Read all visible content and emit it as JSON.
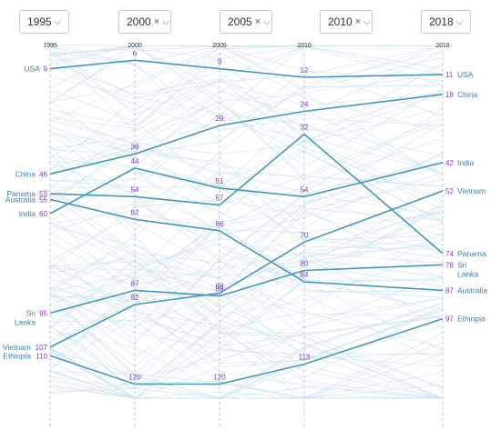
{
  "selectors": [
    {
      "label": "1995",
      "clear": false
    },
    {
      "label": "2000",
      "clear": true
    },
    {
      "label": "2005",
      "clear": true
    },
    {
      "label": "2010",
      "clear": true
    },
    {
      "label": "2018",
      "clear": false
    }
  ],
  "clear_glyph": "×",
  "chevron_glyph": "⌵",
  "colors": {
    "highlight": "#4a96b5",
    "background_lines": "#cfe3ee",
    "rank_text": "#7a3fc8",
    "country_text": "#3a7fa8"
  },
  "chart_data": {
    "type": "line",
    "title": "",
    "xlabel": "",
    "ylabel": "",
    "x": [
      "1995",
      "2000",
      "2005",
      "2010",
      "2018"
    ],
    "y_axis": "rank (1 at top)",
    "ylim": [
      0,
      125
    ],
    "series": [
      {
        "name": "USA",
        "label_lines": [
          "USA"
        ],
        "values": [
          9,
          6,
          9,
          12,
          11
        ]
      },
      {
        "name": "China",
        "label_lines": [
          "China"
        ],
        "values": [
          46,
          39,
          29,
          24,
          18
        ]
      },
      {
        "name": "Panama",
        "label_lines": [
          "Panama"
        ],
        "values": [
          53,
          54,
          57,
          32,
          74
        ]
      },
      {
        "name": "Australia",
        "label_lines": [
          "Australia"
        ],
        "values": [
          55,
          62,
          66,
          84,
          87
        ]
      },
      {
        "name": "India",
        "label_lines": [
          "India"
        ],
        "values": [
          60,
          44,
          51,
          54,
          42
        ]
      },
      {
        "name": "Sri Lanka",
        "label_lines": [
          "Sri",
          "Lanka"
        ],
        "values": [
          95,
          87,
          89,
          80,
          78
        ]
      },
      {
        "name": "Vietnam",
        "label_lines": [
          "Vietnam"
        ],
        "values": [
          107,
          92,
          88,
          70,
          52
        ]
      },
      {
        "name": "Ethiopia",
        "label_lines": [
          "Ethiopia"
        ],
        "values": [
          110,
          120,
          120,
          113,
          97
        ]
      }
    ]
  }
}
